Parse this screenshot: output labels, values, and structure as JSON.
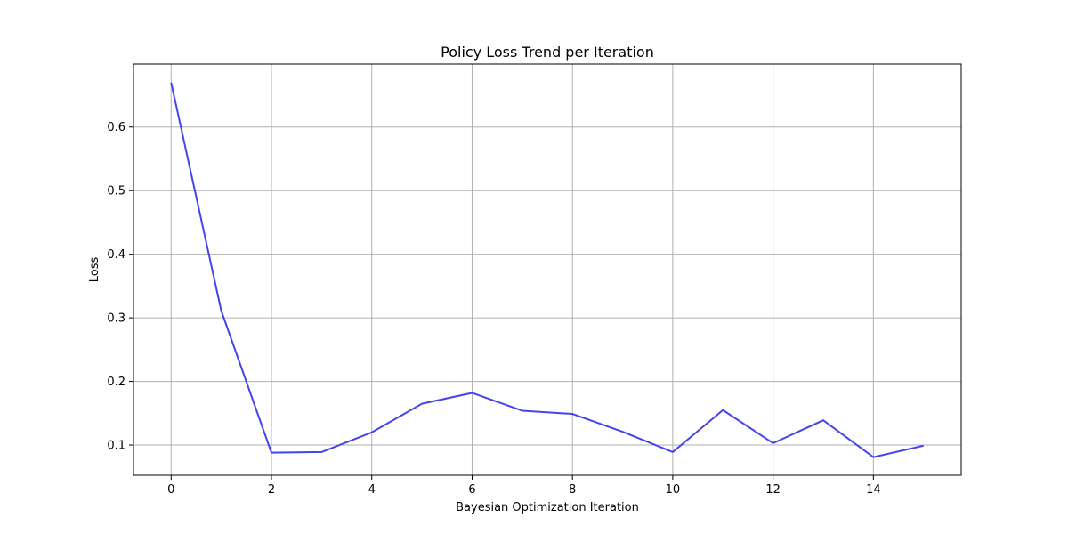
{
  "chart_data": {
    "type": "line",
    "title": "Policy Loss Trend per Iteration",
    "xlabel": "Bayesian Optimization Iteration",
    "ylabel": "Loss",
    "x": [
      0,
      1,
      2,
      3,
      4,
      5,
      6,
      7,
      8,
      9,
      10,
      11,
      12,
      13,
      14,
      15
    ],
    "series": [
      {
        "values": [
          0.67,
          0.311,
          0.088,
          0.089,
          0.12,
          0.165,
          0.182,
          0.154,
          0.149,
          0.121,
          0.089,
          0.155,
          0.103,
          0.139,
          0.081,
          0.099
        ],
        "color": "#4444ee"
      }
    ],
    "xlim": [
      -0.75,
      15.75
    ],
    "ylim": [
      0.0525,
      0.699
    ],
    "xticks": [
      0,
      2,
      4,
      6,
      8,
      10,
      12,
      14
    ],
    "xtick_labels": [
      "0",
      "2",
      "4",
      "6",
      "8",
      "10",
      "12",
      "14"
    ],
    "yticks": [
      0.1,
      0.2,
      0.3,
      0.4,
      0.5,
      0.6
    ],
    "ytick_labels": [
      "0.1",
      "0.2",
      "0.3",
      "0.4",
      "0.5",
      "0.6"
    ],
    "grid": true,
    "grid_color": "#b0b0b0",
    "axes_color": "#000000"
  }
}
